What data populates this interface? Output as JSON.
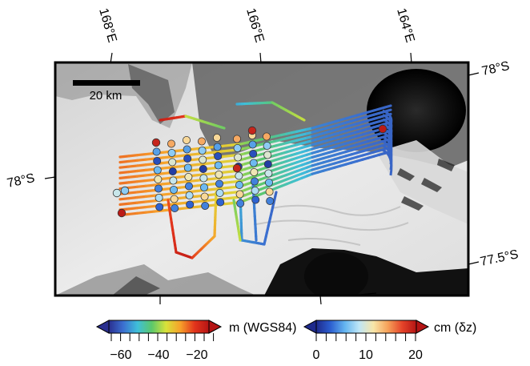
{
  "map": {
    "longitude_labels": [
      "168°E",
      "166°E",
      "164°E"
    ],
    "latitude_labels_left": [
      "78°S"
    ],
    "latitude_labels_right": [
      "78°S",
      "77.5°S"
    ],
    "scale_bar": {
      "label": "20 km"
    }
  },
  "colorbars": [
    {
      "unit_label": "m (WGS84)",
      "ticks": [
        "−60",
        "−40",
        "−20"
      ],
      "range": [
        -65,
        -10
      ],
      "palette": [
        "#2a2f8f",
        "#3b6fd0",
        "#3fbfd9",
        "#5cc86a",
        "#d8e23a",
        "#f7a12a",
        "#e2341c",
        "#b51414"
      ],
      "extend_left_color": "#2a2f8f",
      "extend_right_color": "#b51414"
    },
    {
      "unit_label": "cm (δz)",
      "ticks": [
        "0",
        "10",
        "20"
      ],
      "range": [
        -2,
        22
      ],
      "palette": [
        "#1e2a8c",
        "#2c5fd0",
        "#64b5f0",
        "#bfe6f6",
        "#f8e6a8",
        "#f6a25a",
        "#e5452a",
        "#b51414"
      ],
      "extend_left_color": "#1e2a8c",
      "extend_right_color": "#b51414"
    }
  ],
  "colors": {
    "frame": "#000000",
    "ice_shelf": "#e4e4e4",
    "shadow": "#111111"
  }
}
